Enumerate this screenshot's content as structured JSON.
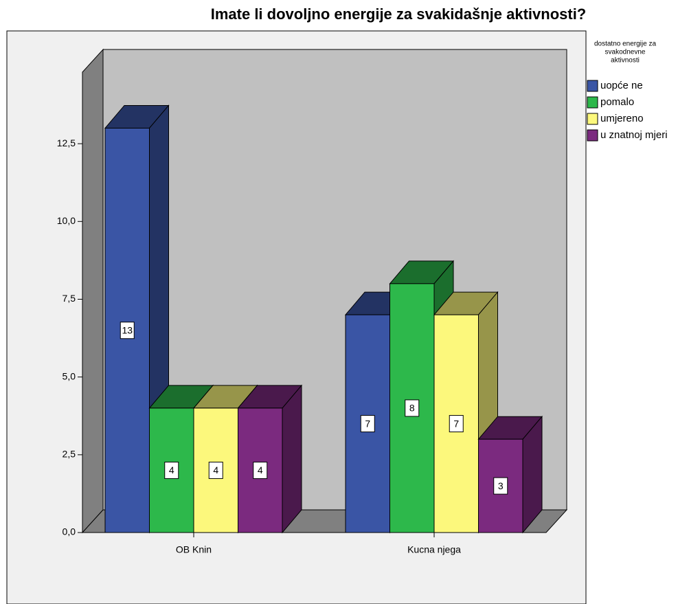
{
  "chart_data": {
    "type": "bar3d",
    "title": "Imate li dovoljno energije za svakidašnje aktivnosti?",
    "legend_title": [
      "dostatno energije za",
      "svakodnevne",
      "aktivnosti"
    ],
    "categories": [
      "OB Knin",
      "Kucna njega"
    ],
    "series": [
      {
        "name": "uopće ne",
        "color": "#3a55a5",
        "values": [
          13,
          7
        ]
      },
      {
        "name": "pomalo",
        "color": "#2db84b",
        "values": [
          4,
          8
        ]
      },
      {
        "name": "umjereno",
        "color": "#fcf87c",
        "values": [
          4,
          7
        ]
      },
      {
        "name": "u znatnoj mjeri",
        "color": "#7b2a7f",
        "values": [
          4,
          3
        ]
      }
    ],
    "ylim": [
      0,
      14.8
    ],
    "yticks": [
      {
        "value": 0,
        "label": "0,0"
      },
      {
        "value": 2.5,
        "label": "2,5"
      },
      {
        "value": 5,
        "label": "5,0"
      },
      {
        "value": 7.5,
        "label": "7,5"
      },
      {
        "value": 10,
        "label": "10,0"
      },
      {
        "value": 12.5,
        "label": "12,5"
      }
    ],
    "legend": "right"
  }
}
